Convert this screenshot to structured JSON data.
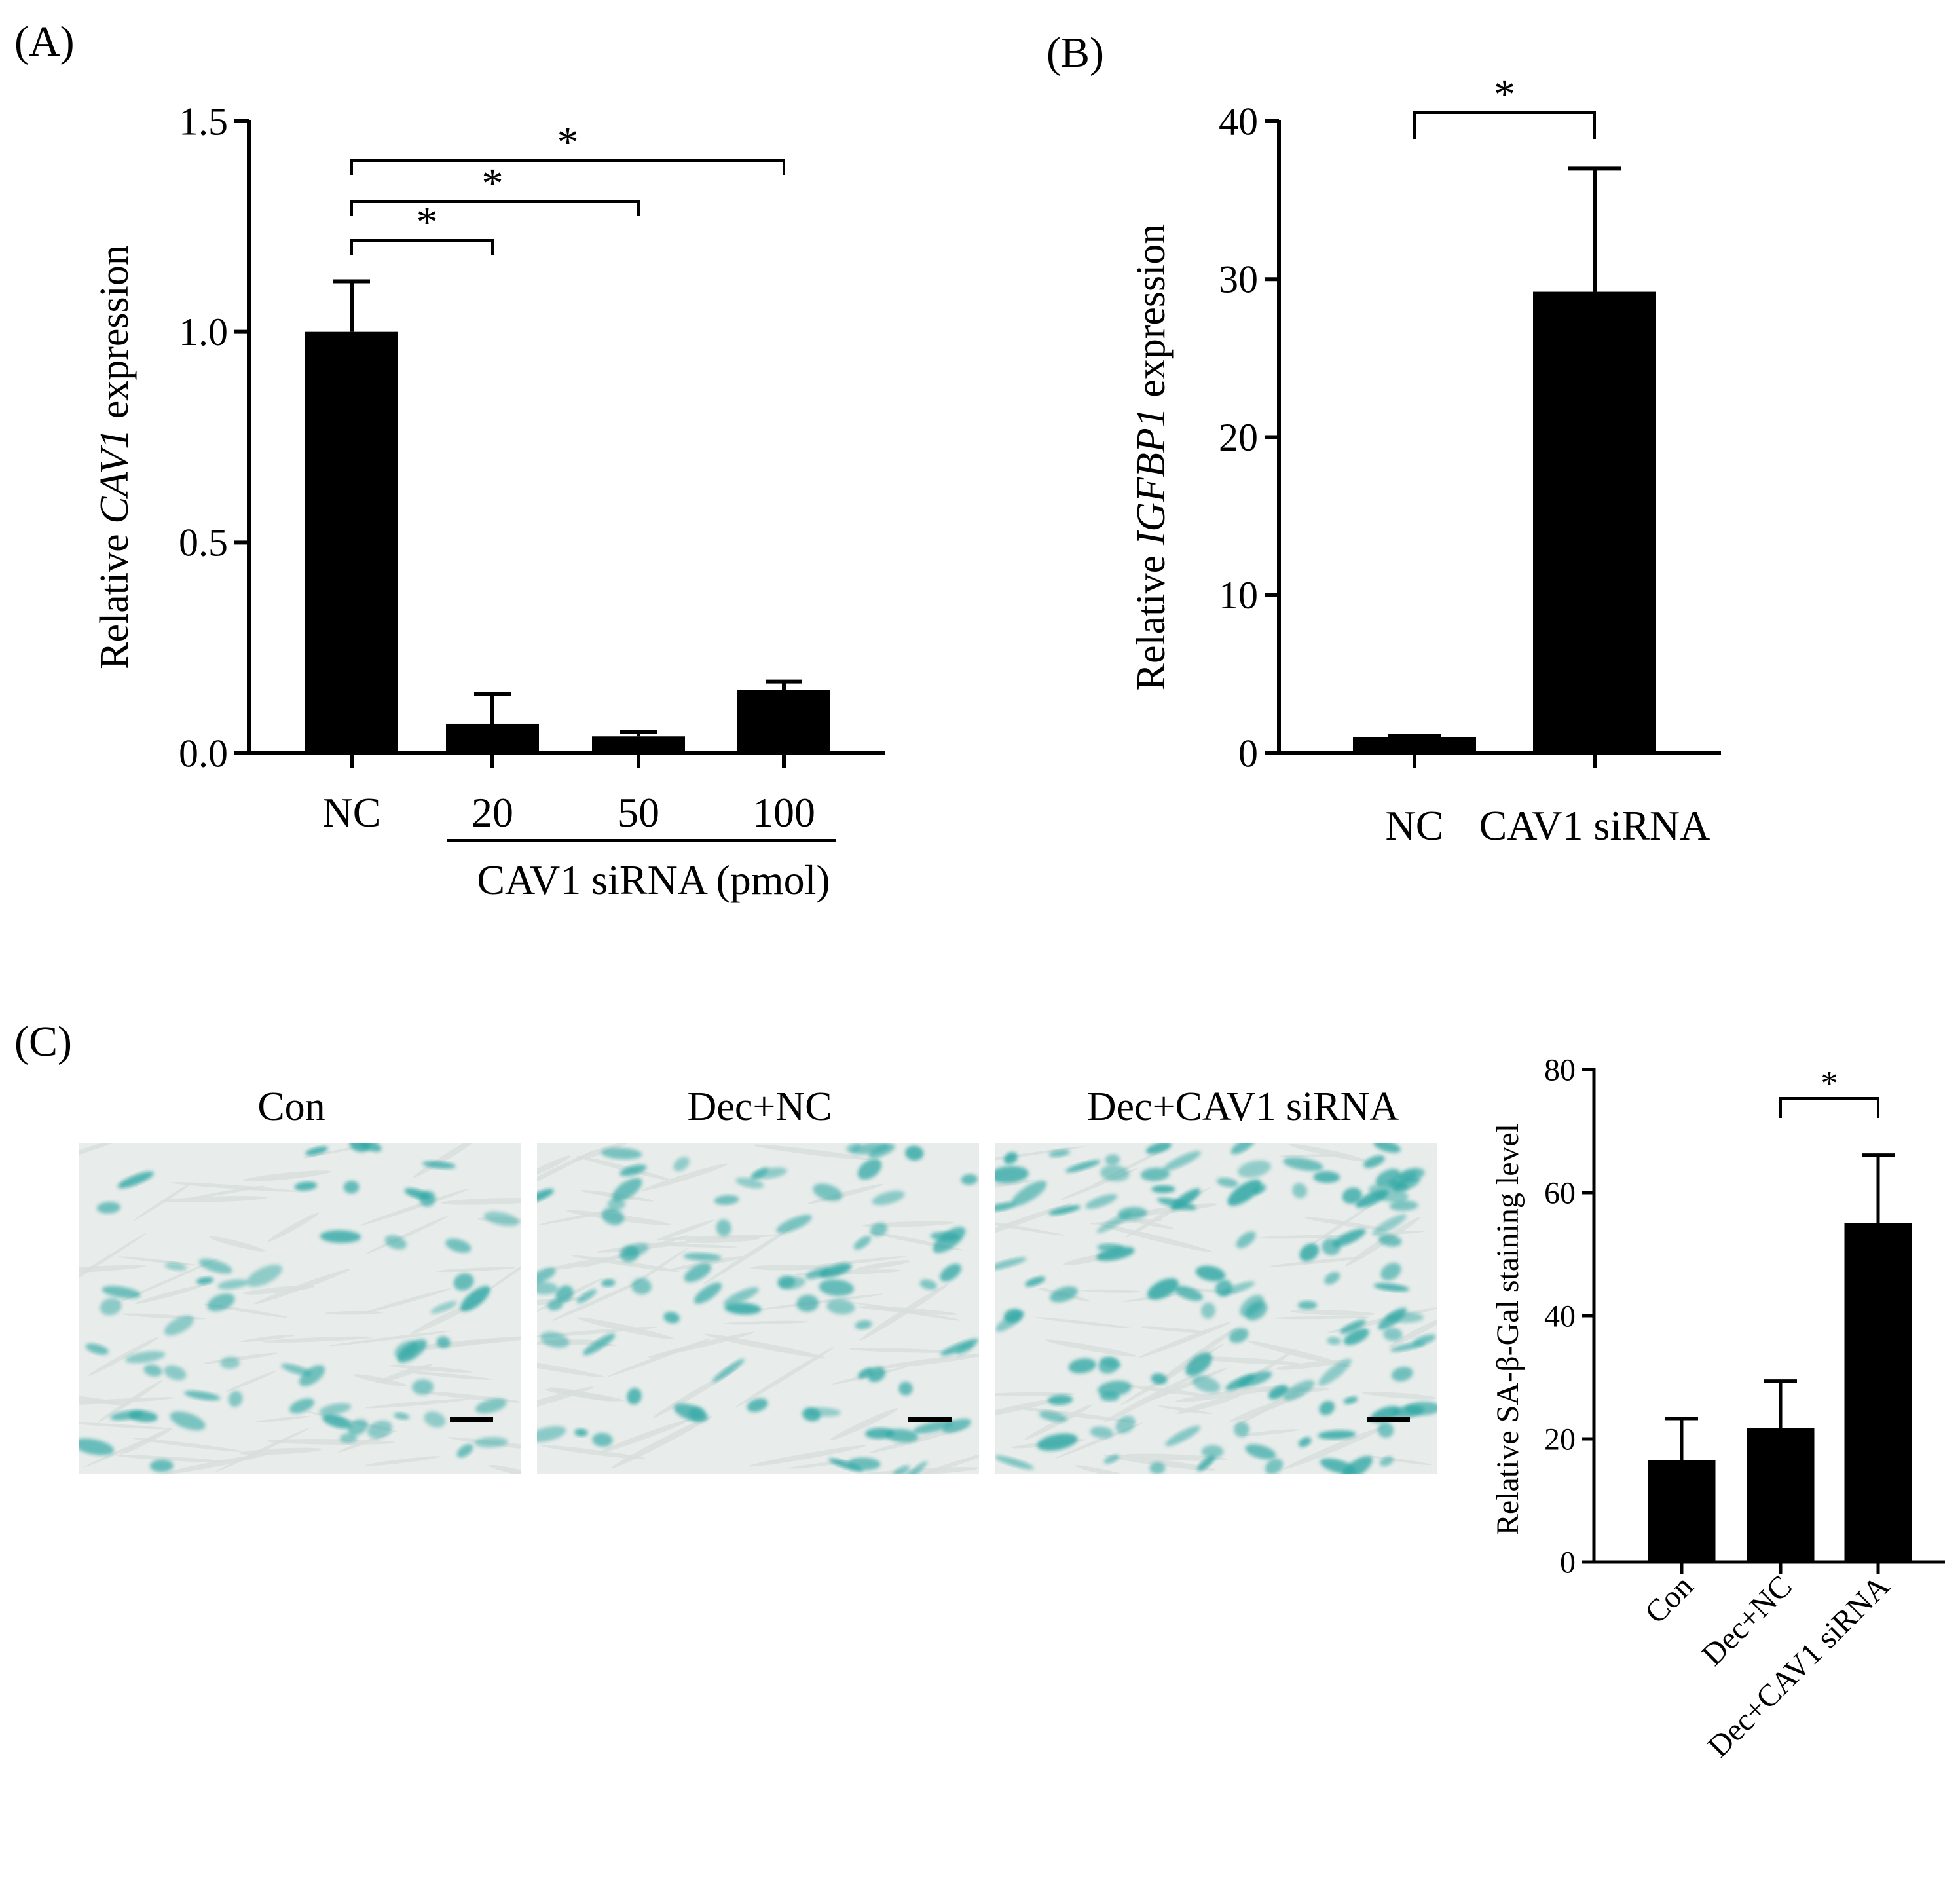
{
  "figure": {
    "panel_labels": [
      "(A)",
      "(B)",
      "(C)"
    ],
    "micrographs": {
      "titles": [
        "Con",
        "Dec+NC",
        "Dec+CAV1 siRNA"
      ],
      "stain_color": "#2fa7a4",
      "background_color": "#e8ecea",
      "scale_bar_color": "#000000"
    }
  },
  "chart_data": [
    {
      "panel": "A",
      "type": "bar",
      "categories": [
        "NC",
        "20",
        "50",
        "100"
      ],
      "values": [
        1.0,
        0.07,
        0.04,
        0.15
      ],
      "errors": [
        0.12,
        0.07,
        0.01,
        0.02
      ],
      "ylabel_prefix": "Relative ",
      "ylabel_gene": "CAV1",
      "ylabel_suffix": " expression",
      "group_label": "CAV1 siRNA (pmol)",
      "ylim": [
        0,
        1.5
      ],
      "yticks": [
        "0.0",
        "0.5",
        "1.0",
        "1.5"
      ],
      "ytick_values": [
        0,
        0.5,
        1.0,
        1.5
      ],
      "significance": [
        {
          "from": 0,
          "to": 1,
          "label": "*"
        },
        {
          "from": 0,
          "to": 2,
          "label": "*"
        },
        {
          "from": 0,
          "to": 3,
          "label": "*"
        }
      ],
      "bar_color": "#000000"
    },
    {
      "panel": "B",
      "type": "bar",
      "categories": [
        "NC",
        "CAV1 siRNA"
      ],
      "values": [
        1.0,
        29.2
      ],
      "errors": [
        0.1,
        7.8
      ],
      "ylabel_prefix": "Relative ",
      "ylabel_gene": "IGFBP1",
      "ylabel_suffix": " expression",
      "ylim": [
        0,
        40
      ],
      "yticks": [
        "0",
        "10",
        "20",
        "30",
        "40"
      ],
      "ytick_values": [
        0,
        10,
        20,
        30,
        40
      ],
      "significance": [
        {
          "from": 0,
          "to": 1,
          "label": "*"
        }
      ],
      "bar_color": "#000000"
    },
    {
      "panel": "C",
      "type": "bar",
      "categories": [
        "Con",
        "Dec+NC",
        "Dec+CAV1 siRNA"
      ],
      "values": [
        16.5,
        21.7,
        55.0
      ],
      "errors": [
        6.8,
        7.7,
        11.1
      ],
      "ylabel": "Relative SA-β-Gal staining level",
      "ylim": [
        0,
        80
      ],
      "yticks": [
        "0",
        "20",
        "40",
        "60",
        "80"
      ],
      "ytick_values": [
        0,
        20,
        40,
        60,
        80
      ],
      "significance": [
        {
          "from": 1,
          "to": 2,
          "label": "*"
        }
      ],
      "bar_color": "#000000"
    }
  ]
}
